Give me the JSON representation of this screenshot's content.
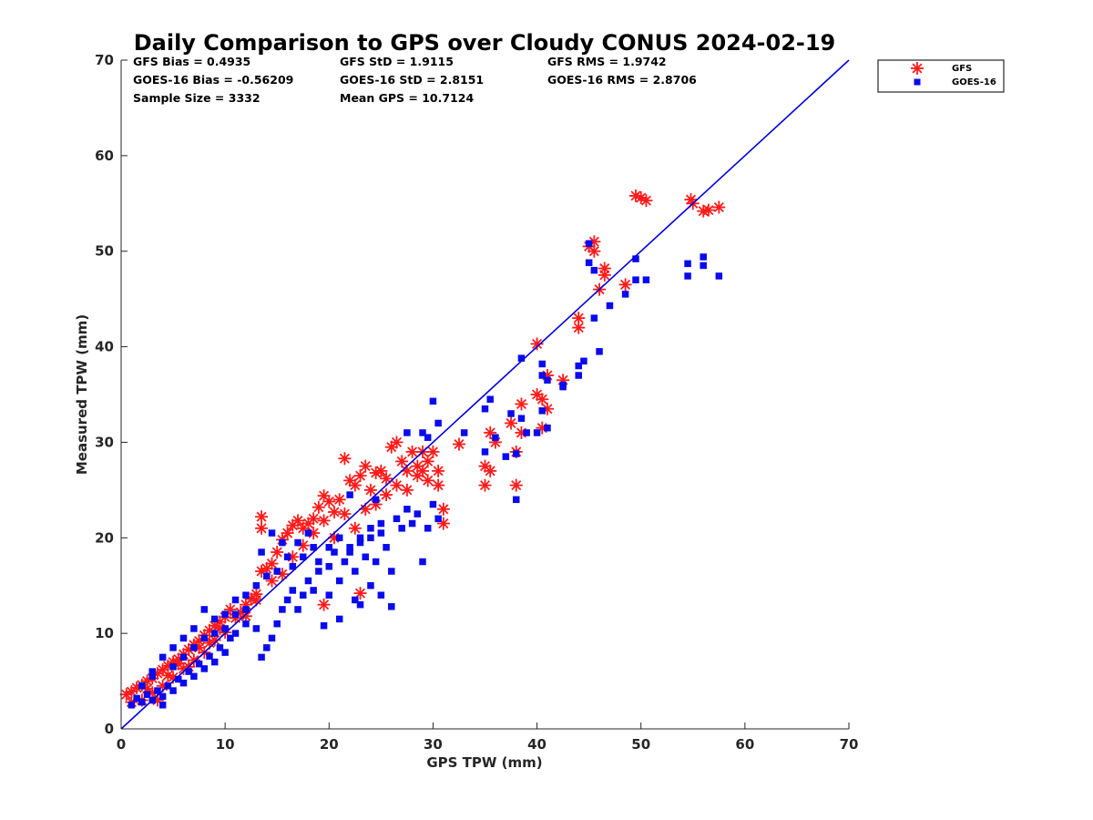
{
  "chart_data": {
    "type": "scatter",
    "title": "Daily Comparison to GPS over Cloudy CONUS 2024-02-19",
    "xlabel": "GPS TPW (mm)",
    "ylabel": "Measured TPW (mm)",
    "xlim": [
      0,
      70
    ],
    "ylim": [
      0,
      70
    ],
    "xticks": [
      "0",
      "10",
      "20",
      "30",
      "40",
      "50",
      "60",
      "70"
    ],
    "yticks": [
      "0",
      "10",
      "20",
      "30",
      "40",
      "50",
      "60",
      "70"
    ],
    "grid": false,
    "legend_position": "outside top-right",
    "stats": [
      [
        "GFS Bias = 0.4935",
        "GFS StD = 1.9115",
        "GFS RMS = 1.9742"
      ],
      [
        "GOES-16 Bias = -0.56209",
        "GOES-16 StD = 2.8151",
        "GOES-16 RMS = 2.8706"
      ],
      [
        "Sample Size = 3332",
        "Mean GPS = 10.7124",
        ""
      ]
    ],
    "reference_line": {
      "from": [
        0,
        0
      ],
      "to": [
        70,
        70
      ],
      "color": "#0000dd"
    },
    "series": [
      {
        "name": "GFS",
        "marker": "asterisk",
        "color": "#ff1a1a",
        "points": [
          [
            0.5,
            3.6
          ],
          [
            1.0,
            3.9
          ],
          [
            1.5,
            4.3
          ],
          [
            2.0,
            4.6
          ],
          [
            2.5,
            5.0
          ],
          [
            3.0,
            5.3
          ],
          [
            3.5,
            5.8
          ],
          [
            4.0,
            6.2
          ],
          [
            4.5,
            6.6
          ],
          [
            5.0,
            7.0
          ],
          [
            5.5,
            7.3
          ],
          [
            6.0,
            7.8
          ],
          [
            6.5,
            8.3
          ],
          [
            7.0,
            8.8
          ],
          [
            7.5,
            9.2
          ],
          [
            8.0,
            9.8
          ],
          [
            8.5,
            10.3
          ],
          [
            9.0,
            10.8
          ],
          [
            9.5,
            11.2
          ],
          [
            10.0,
            11.7
          ],
          [
            2.0,
            3.0
          ],
          [
            3.0,
            3.8
          ],
          [
            4.0,
            4.5
          ],
          [
            5.0,
            5.4
          ],
          [
            6.0,
            6.3
          ],
          [
            7.0,
            7.2
          ],
          [
            8.0,
            8.0
          ],
          [
            9.0,
            9.3
          ],
          [
            10.0,
            10.1
          ],
          [
            11.0,
            11.6
          ],
          [
            11.5,
            12.2
          ],
          [
            12.0,
            13.0
          ],
          [
            12.5,
            13.6
          ],
          [
            13.0,
            14.1
          ],
          [
            13.5,
            16.5
          ],
          [
            14.0,
            16.8
          ],
          [
            14.5,
            17.3
          ],
          [
            15.0,
            18.5
          ],
          [
            15.5,
            19.8
          ],
          [
            16.0,
            20.5
          ],
          [
            16.5,
            21.3
          ],
          [
            17.0,
            21.8
          ],
          [
            17.5,
            21.0
          ],
          [
            18.0,
            21.5
          ],
          [
            18.5,
            22.0
          ],
          [
            19.0,
            23.2
          ],
          [
            19.5,
            24.4
          ],
          [
            20.0,
            23.8
          ],
          [
            20.5,
            22.7
          ],
          [
            21.0,
            24.0
          ],
          [
            21.5,
            28.3
          ],
          [
            22.0,
            26.0
          ],
          [
            22.5,
            25.5
          ],
          [
            23.0,
            26.5
          ],
          [
            23.5,
            27.5
          ],
          [
            24.0,
            25.0
          ],
          [
            24.5,
            26.8
          ],
          [
            25.0,
            27.0
          ],
          [
            25.5,
            26.2
          ],
          [
            26.0,
            29.5
          ],
          [
            26.5,
            30.0
          ],
          [
            27.0,
            28.0
          ],
          [
            27.5,
            27.0
          ],
          [
            28.0,
            29.0
          ],
          [
            28.5,
            27.5
          ],
          [
            29.0,
            27.0
          ],
          [
            29.5,
            28.0
          ],
          [
            30.0,
            29.0
          ],
          [
            30.5,
            25.5
          ],
          [
            31.0,
            23.0
          ],
          [
            31.0,
            21.5
          ],
          [
            13.5,
            21.0
          ],
          [
            13.5,
            22.2
          ],
          [
            19.5,
            13.0
          ],
          [
            23.0,
            14.2
          ],
          [
            32.5,
            29.8
          ],
          [
            35.0,
            27.5
          ],
          [
            35.0,
            25.5
          ],
          [
            35.5,
            31.0
          ],
          [
            35.5,
            27.0
          ],
          [
            36.0,
            30.0
          ],
          [
            37.5,
            32.0
          ],
          [
            38.0,
            29.0
          ],
          [
            38.0,
            25.5
          ],
          [
            38.5,
            31.0
          ],
          [
            38.5,
            34.0
          ],
          [
            40.0,
            35.0
          ],
          [
            40.0,
            40.3
          ],
          [
            40.5,
            34.5
          ],
          [
            40.5,
            31.5
          ],
          [
            41.0,
            37.0
          ],
          [
            41.0,
            33.5
          ],
          [
            42.5,
            36.5
          ],
          [
            44.0,
            43.0
          ],
          [
            44.0,
            42.0
          ],
          [
            45.0,
            50.5
          ],
          [
            45.5,
            51.0
          ],
          [
            45.5,
            50.0
          ],
          [
            46.0,
            46.0
          ],
          [
            46.5,
            47.5
          ],
          [
            46.5,
            48.2
          ],
          [
            48.5,
            46.5
          ],
          [
            49.5,
            55.8
          ],
          [
            50.0,
            55.6
          ],
          [
            50.5,
            55.3
          ],
          [
            54.8,
            55.4
          ],
          [
            55.0,
            55.0
          ],
          [
            56.0,
            54.2
          ],
          [
            56.5,
            54.3
          ],
          [
            57.5,
            54.6
          ],
          [
            1.0,
            2.8
          ],
          [
            2.5,
            4.2
          ],
          [
            3.5,
            3.0
          ],
          [
            4.5,
            5.6
          ],
          [
            5.5,
            6.8
          ],
          [
            6.5,
            6.5
          ],
          [
            7.5,
            8.5
          ],
          [
            8.5,
            9.0
          ],
          [
            9.5,
            10.5
          ],
          [
            10.5,
            12.5
          ],
          [
            12.0,
            11.8
          ],
          [
            13.0,
            13.5
          ],
          [
            14.5,
            15.5
          ],
          [
            15.5,
            16.2
          ],
          [
            16.5,
            18.0
          ],
          [
            17.5,
            19.2
          ],
          [
            18.5,
            20.5
          ],
          [
            19.5,
            21.8
          ],
          [
            20.5,
            20.0
          ],
          [
            21.5,
            22.5
          ],
          [
            22.5,
            21.0
          ],
          [
            23.5,
            23.0
          ],
          [
            24.5,
            23.5
          ],
          [
            25.5,
            24.5
          ],
          [
            26.5,
            25.5
          ],
          [
            27.5,
            25.0
          ],
          [
            28.5,
            26.5
          ],
          [
            29.5,
            26.0
          ],
          [
            30.5,
            27.0
          ],
          [
            29.0,
            29.0
          ]
        ]
      },
      {
        "name": "GOES-16",
        "marker": "square",
        "color": "#0a0aee",
        "points": [
          [
            1.0,
            2.5
          ],
          [
            1.5,
            3.2
          ],
          [
            2.0,
            2.8
          ],
          [
            2.5,
            3.6
          ],
          [
            3.0,
            3.0
          ],
          [
            3.5,
            4.0
          ],
          [
            4.0,
            3.4
          ],
          [
            4.5,
            4.5
          ],
          [
            5.0,
            4.0
          ],
          [
            5.5,
            5.2
          ],
          [
            6.0,
            4.8
          ],
          [
            6.5,
            6.0
          ],
          [
            7.0,
            5.5
          ],
          [
            7.5,
            6.8
          ],
          [
            8.0,
            6.3
          ],
          [
            8.5,
            7.6
          ],
          [
            9.0,
            7.0
          ],
          [
            9.5,
            8.5
          ],
          [
            10.0,
            8.0
          ],
          [
            10.5,
            9.5
          ],
          [
            3.0,
            6.0
          ],
          [
            4.0,
            7.5
          ],
          [
            5.0,
            8.5
          ],
          [
            6.0,
            9.5
          ],
          [
            7.0,
            10.5
          ],
          [
            8.0,
            12.5
          ],
          [
            9.0,
            11.5
          ],
          [
            10.0,
            12.0
          ],
          [
            11.0,
            13.5
          ],
          [
            12.0,
            14.0
          ],
          [
            11.0,
            10.0
          ],
          [
            12.0,
            11.0
          ],
          [
            13.0,
            10.5
          ],
          [
            13.5,
            7.5
          ],
          [
            14.0,
            8.5
          ],
          [
            14.5,
            9.5
          ],
          [
            15.0,
            11.0
          ],
          [
            15.5,
            12.5
          ],
          [
            16.0,
            13.5
          ],
          [
            16.5,
            14.5
          ],
          [
            17.0,
            12.5
          ],
          [
            17.5,
            14.0
          ],
          [
            18.0,
            15.5
          ],
          [
            18.5,
            14.5
          ],
          [
            19.0,
            16.5
          ],
          [
            19.5,
            10.8
          ],
          [
            20.0,
            17.0
          ],
          [
            20.5,
            18.5
          ],
          [
            21.0,
            15.5
          ],
          [
            21.5,
            17.5
          ],
          [
            22.0,
            19.0
          ],
          [
            22.5,
            16.5
          ],
          [
            23.0,
            20.0
          ],
          [
            23.5,
            18.0
          ],
          [
            24.0,
            21.0
          ],
          [
            24.5,
            17.5
          ],
          [
            25.0,
            20.5
          ],
          [
            25.5,
            19.0
          ],
          [
            26.0,
            16.5
          ],
          [
            26.5,
            22.0
          ],
          [
            27.0,
            21.0
          ],
          [
            27.5,
            23.0
          ],
          [
            28.0,
            21.5
          ],
          [
            28.5,
            22.5
          ],
          [
            29.0,
            17.5
          ],
          [
            29.5,
            21.0
          ],
          [
            30.0,
            23.5
          ],
          [
            30.5,
            22.0
          ],
          [
            30.0,
            34.3
          ],
          [
            30.5,
            32.0
          ],
          [
            13.5,
            18.5
          ],
          [
            14.5,
            20.5
          ],
          [
            15.5,
            19.5
          ],
          [
            16.5,
            17.0
          ],
          [
            17.5,
            18.0
          ],
          [
            18.5,
            19.0
          ],
          [
            21.0,
            11.5
          ],
          [
            22.5,
            13.5
          ],
          [
            23.0,
            13.0
          ],
          [
            26.0,
            12.8
          ],
          [
            24.0,
            15.0
          ],
          [
            25.0,
            14.0
          ],
          [
            19.0,
            17.5
          ],
          [
            20.0,
            14.0
          ],
          [
            22.0,
            24.5
          ],
          [
            24.5,
            24.0
          ],
          [
            27.5,
            31.0
          ],
          [
            29.0,
            31.0
          ],
          [
            29.5,
            30.5
          ],
          [
            33.0,
            31.0
          ],
          [
            35.0,
            29.0
          ],
          [
            35.0,
            33.5
          ],
          [
            35.5,
            34.5
          ],
          [
            36.0,
            30.5
          ],
          [
            37.0,
            28.5
          ],
          [
            37.5,
            33.0
          ],
          [
            38.0,
            28.8
          ],
          [
            38.0,
            24.0
          ],
          [
            38.5,
            32.5
          ],
          [
            38.5,
            38.8
          ],
          [
            39.0,
            31.0
          ],
          [
            40.0,
            31.0
          ],
          [
            40.5,
            38.2
          ],
          [
            40.5,
            37.0
          ],
          [
            40.5,
            33.3
          ],
          [
            41.0,
            36.5
          ],
          [
            41.0,
            31.5
          ],
          [
            42.5,
            36.0
          ],
          [
            42.5,
            35.8
          ],
          [
            44.0,
            38.0
          ],
          [
            44.0,
            37.0
          ],
          [
            44.5,
            38.5
          ],
          [
            45.0,
            48.8
          ],
          [
            45.0,
            50.8
          ],
          [
            45.5,
            48.0
          ],
          [
            45.5,
            43.0
          ],
          [
            46.0,
            39.5
          ],
          [
            47.0,
            44.3
          ],
          [
            48.5,
            45.5
          ],
          [
            49.5,
            49.2
          ],
          [
            49.5,
            47.0
          ],
          [
            50.5,
            47.0
          ],
          [
            54.5,
            48.7
          ],
          [
            54.5,
            47.4
          ],
          [
            56.0,
            49.4
          ],
          [
            56.0,
            48.5
          ],
          [
            57.5,
            47.4
          ],
          [
            2.0,
            4.5
          ],
          [
            3.0,
            5.5
          ],
          [
            4.0,
            2.5
          ],
          [
            5.0,
            6.5
          ],
          [
            6.0,
            7.5
          ],
          [
            7.0,
            8.5
          ],
          [
            8.0,
            9.5
          ],
          [
            9.0,
            10.0
          ],
          [
            10.0,
            10.5
          ],
          [
            11.0,
            12.0
          ],
          [
            12.0,
            12.5
          ],
          [
            13.0,
            15.0
          ],
          [
            14.0,
            16.0
          ],
          [
            15.0,
            16.5
          ],
          [
            16.0,
            18.0
          ],
          [
            17.0,
            19.5
          ],
          [
            18.0,
            20.5
          ],
          [
            20.0,
            19.0
          ],
          [
            21.0,
            20.0
          ],
          [
            22.0,
            18.5
          ],
          [
            23.0,
            19.5
          ],
          [
            24.0,
            20.0
          ],
          [
            25.0,
            21.5
          ]
        ]
      }
    ]
  }
}
